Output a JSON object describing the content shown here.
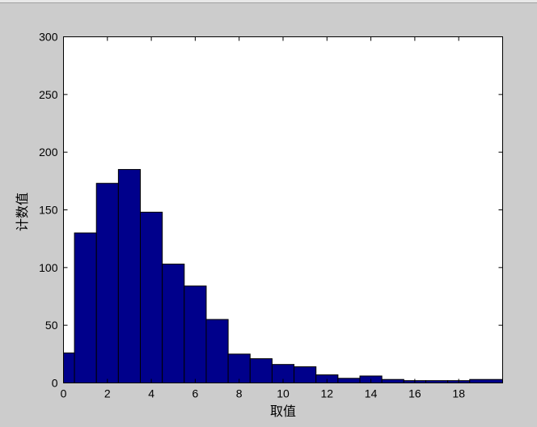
{
  "chart_data": {
    "type": "bar",
    "subtype": "histogram",
    "x": [
      0,
      1,
      2,
      3,
      4,
      5,
      6,
      7,
      8,
      9,
      10,
      11,
      12,
      13,
      14,
      15,
      16,
      17,
      18,
      19
    ],
    "values": [
      26,
      130,
      173,
      185,
      148,
      103,
      84,
      55,
      25,
      21,
      16,
      14,
      7,
      4,
      6,
      3,
      2,
      2,
      2,
      3
    ],
    "xlabel": "取值",
    "ylabel": "计数值",
    "xlim": [
      0,
      20
    ],
    "ylim": [
      0,
      300
    ],
    "xticks": [
      0,
      2,
      4,
      6,
      8,
      10,
      12,
      14,
      16,
      18
    ],
    "yticks": [
      0,
      50,
      100,
      150,
      200,
      250,
      300
    ],
    "grid": false,
    "bar_color": "#00008b",
    "edge_color": "#000000",
    "background": "#cccccc"
  }
}
